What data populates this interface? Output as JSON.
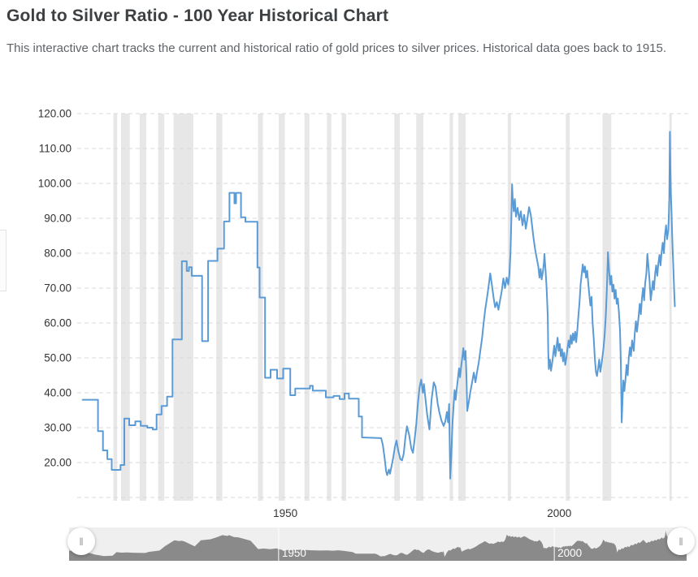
{
  "header": {
    "title": "Gold to Silver Ratio - 100 Year Historical Chart",
    "description": "This interactive chart tracks the current and historical ratio of gold prices to silver prices. Historical data goes back to 1915."
  },
  "navigator": {
    "handle_glyph": "‖"
  },
  "chart_data": {
    "type": "line",
    "title": "Gold to Silver Ratio - 100 Year Historical Chart",
    "xlabel": "",
    "ylabel": "",
    "x_range_years": [
      1912,
      2024
    ],
    "y_range": [
      10,
      120
    ],
    "y_ticks": [
      20,
      30,
      40,
      50,
      60,
      70,
      80,
      90,
      100,
      110,
      120
    ],
    "y_tick_labels": [
      "20.00",
      "30.00",
      "40.00",
      "50.00",
      "60.00",
      "70.00",
      "80.00",
      "90.00",
      "100.00",
      "110.00",
      "120.00"
    ],
    "x_ticks": [
      {
        "year": 1950,
        "label": "1950"
      },
      {
        "year": 2000,
        "label": "2000"
      }
    ],
    "grid": true,
    "legend": "none",
    "step_until_year": 1964,
    "colors": {
      "line": "#5b9bd5",
      "grid": "#d8d8d8",
      "band": "#e7e7e7",
      "axis_text": "#333333",
      "nav_bg": "#efefef",
      "nav_series": "#8a8a8a",
      "nav_label": "#ffffff"
    },
    "recessions": [
      [
        1918.6,
        1919.3
      ],
      [
        1920.0,
        1921.6
      ],
      [
        1923.4,
        1924.6
      ],
      [
        1926.8,
        1927.9
      ],
      [
        1929.6,
        1933.2
      ],
      [
        1937.4,
        1938.5
      ],
      [
        1945.0,
        1945.9
      ],
      [
        1948.8,
        1949.9
      ],
      [
        1953.5,
        1954.4
      ],
      [
        1957.6,
        1958.4
      ],
      [
        1960.3,
        1961.1
      ],
      [
        1969.9,
        1970.9
      ],
      [
        1973.9,
        1975.2
      ],
      [
        1980.0,
        1980.6
      ],
      [
        1981.6,
        1982.9
      ],
      [
        1990.6,
        1991.2
      ],
      [
        2001.2,
        2001.9
      ],
      [
        2007.9,
        2009.5
      ],
      [
        2020.1,
        2020.4
      ]
    ],
    "series": [
      {
        "name": "Gold to Silver Ratio",
        "points": [
          [
            1913.0,
            38
          ],
          [
            1915.8,
            29
          ],
          [
            1916.7,
            23.5
          ],
          [
            1917.5,
            21
          ],
          [
            1918.3,
            17.9
          ],
          [
            1919.9,
            19.3
          ],
          [
            1920.6,
            32.6
          ],
          [
            1921.5,
            30.7
          ],
          [
            1922.6,
            31.8
          ],
          [
            1923.6,
            30.5
          ],
          [
            1924.8,
            30
          ],
          [
            1925.8,
            29.5
          ],
          [
            1926.5,
            33.8
          ],
          [
            1927.4,
            36.2
          ],
          [
            1928.4,
            38.9
          ],
          [
            1929.4,
            55.3
          ],
          [
            1931.1,
            77.7
          ],
          [
            1932.0,
            74.9
          ],
          [
            1932.4,
            76
          ],
          [
            1932.9,
            73.5
          ],
          [
            1934.8,
            54.8
          ],
          [
            1935.9,
            77.8
          ],
          [
            1937.6,
            81.3
          ],
          [
            1938.8,
            89.1
          ],
          [
            1939.8,
            97.3
          ],
          [
            1940.7,
            94.3
          ],
          [
            1941.0,
            97.3
          ],
          [
            1941.9,
            90.3
          ],
          [
            1942.7,
            89
          ],
          [
            1944.9,
            75.9
          ],
          [
            1945.3,
            67.3
          ],
          [
            1946.3,
            44.3
          ],
          [
            1947.3,
            46.6
          ],
          [
            1948.5,
            44.1
          ],
          [
            1949.6,
            46.9
          ],
          [
            1950.9,
            39.3
          ],
          [
            1951.8,
            41.2
          ],
          [
            1954.5,
            42
          ],
          [
            1955.0,
            40.6
          ],
          [
            1957.4,
            38.7
          ],
          [
            1958.8,
            39.1
          ],
          [
            1959.9,
            38.2
          ],
          [
            1960.8,
            39.8
          ],
          [
            1961.6,
            38.3
          ],
          [
            1963.4,
            33.2
          ],
          [
            1964.0,
            27.2
          ],
          [
            1967.5,
            27
          ],
          [
            1967.8,
            25
          ],
          [
            1968.1,
            21.5
          ],
          [
            1968.4,
            17.5
          ],
          [
            1968.6,
            16.4
          ],
          [
            1968.9,
            18
          ],
          [
            1969.1,
            16.8
          ],
          [
            1969.4,
            19
          ],
          [
            1969.7,
            21.5
          ],
          [
            1970.0,
            24.5
          ],
          [
            1970.3,
            26.3
          ],
          [
            1970.6,
            23.5
          ],
          [
            1971.0,
            21
          ],
          [
            1971.3,
            20.6
          ],
          [
            1971.6,
            22.5
          ],
          [
            1971.9,
            27
          ],
          [
            1972.2,
            30.4
          ],
          [
            1972.6,
            28
          ],
          [
            1973.0,
            24
          ],
          [
            1973.3,
            22.8
          ],
          [
            1973.6,
            26.5
          ],
          [
            1973.9,
            31
          ],
          [
            1974.2,
            37
          ],
          [
            1974.5,
            41.5
          ],
          [
            1974.8,
            43.8
          ],
          [
            1975.1,
            40
          ],
          [
            1975.3,
            42.5
          ],
          [
            1975.6,
            38
          ],
          [
            1975.9,
            33.5
          ],
          [
            1976.3,
            29.5
          ],
          [
            1976.7,
            38
          ],
          [
            1977.1,
            43
          ],
          [
            1977.4,
            41.8
          ],
          [
            1977.8,
            37
          ],
          [
            1978.1,
            34.5
          ],
          [
            1978.5,
            32
          ],
          [
            1978.9,
            30.5
          ],
          [
            1979.2,
            31.8
          ],
          [
            1979.5,
            34.5
          ],
          [
            1979.7,
            31.5
          ],
          [
            1979.9,
            36.8
          ],
          [
            1980.1,
            15.4
          ],
          [
            1980.3,
            22
          ],
          [
            1980.5,
            31
          ],
          [
            1980.7,
            36
          ],
          [
            1980.9,
            40.8
          ],
          [
            1981.1,
            38
          ],
          [
            1981.3,
            41.3
          ],
          [
            1981.5,
            44
          ],
          [
            1981.7,
            47
          ],
          [
            1981.9,
            44.5
          ],
          [
            1982.1,
            47.5
          ],
          [
            1982.3,
            50
          ],
          [
            1982.5,
            52.8
          ],
          [
            1982.7,
            49.5
          ],
          [
            1982.9,
            52
          ],
          [
            1983.05,
            45
          ],
          [
            1983.2,
            34.8
          ],
          [
            1983.5,
            37.5
          ],
          [
            1983.8,
            40.5
          ],
          [
            1984.1,
            43
          ],
          [
            1984.4,
            45.8
          ],
          [
            1984.7,
            43
          ],
          [
            1985.0,
            46
          ],
          [
            1985.3,
            48.5
          ],
          [
            1985.6,
            52
          ],
          [
            1985.9,
            55.5
          ],
          [
            1986.2,
            60
          ],
          [
            1986.5,
            64
          ],
          [
            1986.8,
            67
          ],
          [
            1987.1,
            70.5
          ],
          [
            1987.4,
            74.2
          ],
          [
            1987.7,
            71
          ],
          [
            1988.0,
            67.5
          ],
          [
            1988.3,
            64.5
          ],
          [
            1988.6,
            66
          ],
          [
            1988.9,
            63.8
          ],
          [
            1989.2,
            66.5
          ],
          [
            1989.5,
            69
          ],
          [
            1989.8,
            72.8
          ],
          [
            1990.1,
            70
          ],
          [
            1990.4,
            73
          ],
          [
            1990.7,
            71
          ],
          [
            1990.9,
            74
          ],
          [
            1991.0,
            77
          ],
          [
            1991.1,
            80
          ],
          [
            1991.2,
            86
          ],
          [
            1991.3,
            93
          ],
          [
            1991.4,
            99.7
          ],
          [
            1991.5,
            96
          ],
          [
            1991.7,
            92
          ],
          [
            1991.9,
            95.5
          ],
          [
            1992.1,
            90.5
          ],
          [
            1992.4,
            93
          ],
          [
            1992.7,
            89.5
          ],
          [
            1993.0,
            92
          ],
          [
            1993.3,
            88
          ],
          [
            1993.6,
            91
          ],
          [
            1993.9,
            87
          ],
          [
            1994.2,
            90
          ],
          [
            1994.5,
            93.2
          ],
          [
            1994.8,
            91
          ],
          [
            1995.0,
            88.5
          ],
          [
            1995.3,
            84.5
          ],
          [
            1995.6,
            81
          ],
          [
            1995.9,
            78.5
          ],
          [
            1996.2,
            76
          ],
          [
            1996.4,
            73
          ],
          [
            1996.6,
            75.5
          ],
          [
            1996.8,
            72.5
          ],
          [
            1997.0,
            74.5
          ],
          [
            1997.2,
            77
          ],
          [
            1997.3,
            79.8
          ],
          [
            1997.5,
            75
          ],
          [
            1997.7,
            70
          ],
          [
            1997.9,
            62
          ],
          [
            1998.0,
            52
          ],
          [
            1998.1,
            46.8
          ],
          [
            1998.3,
            49.5
          ],
          [
            1998.5,
            46.3
          ],
          [
            1998.7,
            48.5
          ],
          [
            1998.9,
            51
          ],
          [
            1999.1,
            53.5
          ],
          [
            1999.3,
            50.5
          ],
          [
            1999.5,
            53
          ],
          [
            1999.7,
            55.8
          ],
          [
            1999.9,
            52
          ],
          [
            2000.1,
            54
          ],
          [
            2000.3,
            50.5
          ],
          [
            2000.5,
            52.5
          ],
          [
            2000.7,
            49
          ],
          [
            2000.9,
            51.5
          ],
          [
            2001.1,
            48
          ],
          [
            2001.3,
            50
          ],
          [
            2001.5,
            52.5
          ],
          [
            2001.7,
            55
          ],
          [
            2001.9,
            53
          ],
          [
            2002.1,
            56.5
          ],
          [
            2002.3,
            54
          ],
          [
            2002.5,
            57
          ],
          [
            2002.7,
            55
          ],
          [
            2002.9,
            57.5
          ],
          [
            2003.1,
            54.5
          ],
          [
            2003.3,
            58
          ],
          [
            2003.5,
            62
          ],
          [
            2003.7,
            66
          ],
          [
            2003.9,
            71
          ],
          [
            2004.1,
            74
          ],
          [
            2004.3,
            76.8
          ],
          [
            2004.5,
            74.5
          ],
          [
            2004.7,
            76.2
          ],
          [
            2004.9,
            73
          ],
          [
            2005.1,
            75
          ],
          [
            2005.3,
            71.5
          ],
          [
            2005.5,
            68
          ],
          [
            2005.7,
            65
          ],
          [
            2005.9,
            67.5
          ],
          [
            2006.1,
            60
          ],
          [
            2006.3,
            55.5
          ],
          [
            2006.5,
            50
          ],
          [
            2006.7,
            46
          ],
          [
            2006.9,
            44.8
          ],
          [
            2007.1,
            47
          ],
          [
            2007.3,
            49.5
          ],
          [
            2007.5,
            46
          ],
          [
            2007.7,
            48
          ],
          [
            2007.9,
            50.5
          ],
          [
            2008.1,
            53
          ],
          [
            2008.3,
            57
          ],
          [
            2008.5,
            62
          ],
          [
            2008.7,
            70
          ],
          [
            2008.9,
            80.3
          ],
          [
            2009.1,
            75
          ],
          [
            2009.3,
            71
          ],
          [
            2009.5,
            73.5
          ],
          [
            2009.7,
            69
          ],
          [
            2009.9,
            71
          ],
          [
            2010.1,
            67
          ],
          [
            2010.3,
            69.5
          ],
          [
            2010.5,
            65.5
          ],
          [
            2010.7,
            67
          ],
          [
            2010.9,
            63
          ],
          [
            2011.1,
            58
          ],
          [
            2011.25,
            48
          ],
          [
            2011.4,
            31.5
          ],
          [
            2011.55,
            38
          ],
          [
            2011.7,
            43.5
          ],
          [
            2011.9,
            40.5
          ],
          [
            2012.1,
            44
          ],
          [
            2012.3,
            48
          ],
          [
            2012.5,
            45
          ],
          [
            2012.7,
            50
          ],
          [
            2012.9,
            53
          ],
          [
            2013.1,
            50.5
          ],
          [
            2013.3,
            55
          ],
          [
            2013.6,
            52
          ],
          [
            2013.8,
            57
          ],
          [
            2014.0,
            60.5
          ],
          [
            2014.2,
            57.5
          ],
          [
            2014.5,
            62
          ],
          [
            2014.7,
            65.5
          ],
          [
            2014.9,
            62.5
          ],
          [
            2015.1,
            67
          ],
          [
            2015.3,
            70
          ],
          [
            2015.5,
            66.5
          ],
          [
            2015.7,
            71.5
          ],
          [
            2015.9,
            74
          ],
          [
            2016.1,
            79.8
          ],
          [
            2016.3,
            76
          ],
          [
            2016.5,
            72
          ],
          [
            2016.7,
            66.5
          ],
          [
            2016.9,
            69
          ],
          [
            2017.1,
            72
          ],
          [
            2017.3,
            69.5
          ],
          [
            2017.5,
            74
          ],
          [
            2017.7,
            76.5
          ],
          [
            2017.9,
            73.5
          ],
          [
            2018.1,
            77
          ],
          [
            2018.3,
            79.5
          ],
          [
            2018.5,
            76.5
          ],
          [
            2018.7,
            80.5
          ],
          [
            2018.9,
            83
          ],
          [
            2019.1,
            80
          ],
          [
            2019.3,
            85
          ],
          [
            2019.5,
            88
          ],
          [
            2019.7,
            84
          ],
          [
            2019.9,
            86.5
          ],
          [
            2020.0,
            90
          ],
          [
            2020.1,
            96
          ],
          [
            2020.2,
            114.8
          ],
          [
            2020.3,
            103
          ],
          [
            2020.4,
            96.5
          ],
          [
            2020.5,
            92
          ],
          [
            2020.6,
            86
          ],
          [
            2020.7,
            81
          ],
          [
            2020.8,
            77.5
          ],
          [
            2020.9,
            73
          ],
          [
            2021.0,
            68.5
          ],
          [
            2021.1,
            64.8
          ]
        ]
      }
    ]
  }
}
